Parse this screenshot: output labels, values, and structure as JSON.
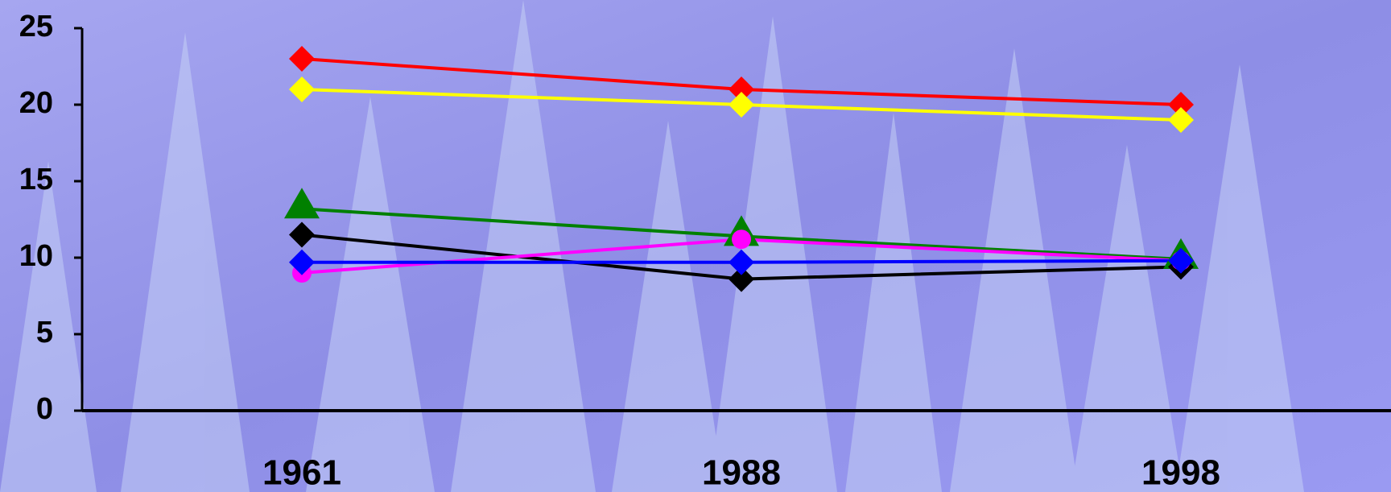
{
  "chart_data": {
    "type": "line",
    "categories": [
      "1961",
      "1988",
      "1998"
    ],
    "series": [
      {
        "color": "#ff0000",
        "marker": "diamond",
        "values": [
          23,
          21,
          20
        ]
      },
      {
        "color": "#ffff00",
        "marker": "diamond",
        "values": [
          21,
          20,
          19
        ]
      },
      {
        "color": "#008000",
        "marker": "triangle",
        "values": [
          13.2,
          11.4,
          9.9
        ]
      },
      {
        "color": "#000000",
        "marker": "diamond",
        "values": [
          11.5,
          8.6,
          9.4
        ]
      },
      {
        "color": "#ff00ff",
        "marker": "circle",
        "values": [
          9,
          11.2,
          9.8
        ]
      },
      {
        "color": "#0000ff",
        "marker": "diamond",
        "values": [
          9.7,
          9.7,
          9.8
        ]
      }
    ],
    "ylim": [
      0,
      25
    ],
    "yticks": [
      0,
      5,
      10,
      15,
      20,
      25
    ],
    "grid": false
  }
}
